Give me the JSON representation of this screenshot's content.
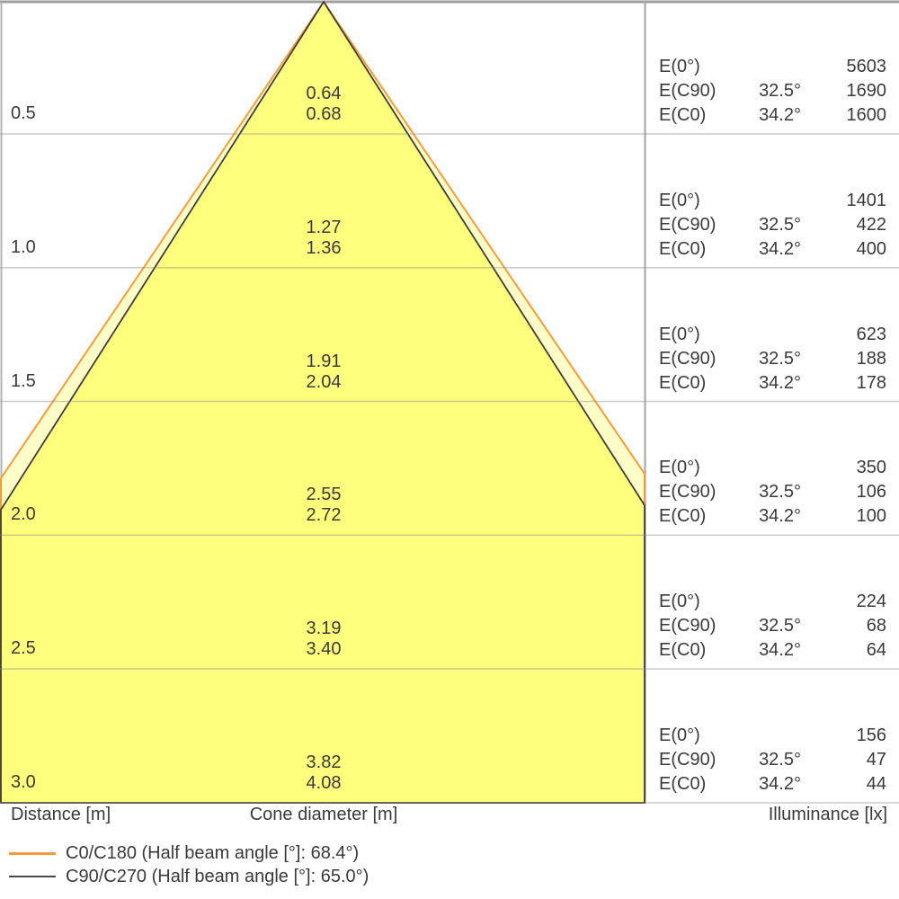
{
  "axis": {
    "distance": "Distance [m]",
    "cone_diameter": "Cone diameter [m]",
    "illuminance": "Illuminance [lx]"
  },
  "legend": {
    "items": [
      {
        "name": "C0/C180",
        "label": "C0/C180 (Half beam angle [°]: 68.4°)",
        "color": "#F59B3C"
      },
      {
        "name": "C90/C270",
        "label": "C90/C270 (Half beam angle [°]: 65.0°)",
        "color": "#4A4A4A"
      }
    ]
  },
  "colors": {
    "cone_fill_main": "#FFFF7D",
    "cone_fill_between": "#FFFFC8",
    "c0_line": "#F59B3C",
    "c90_line": "#3C3C3C",
    "gridline": "#8C8C8C",
    "divider": "#ABABAB",
    "text": "#3A3A3A"
  },
  "rows": [
    {
      "distance": "0.5",
      "d_c90": "0.64",
      "d_c0": "0.68",
      "e0_label": "E(0°)",
      "e0": "5603",
      "ec90_label": "E(C90)",
      "ec90_angle": "32.5°",
      "ec90": "1690",
      "ec0_label": "E(C0)",
      "ec0_angle": "34.2°",
      "ec0": "1600"
    },
    {
      "distance": "1.0",
      "d_c90": "1.27",
      "d_c0": "1.36",
      "e0_label": "E(0°)",
      "e0": "1401",
      "ec90_label": "E(C90)",
      "ec90_angle": "32.5°",
      "ec90": "422",
      "ec0_label": "E(C0)",
      "ec0_angle": "34.2°",
      "ec0": "400"
    },
    {
      "distance": "1.5",
      "d_c90": "1.91",
      "d_c0": "2.04",
      "e0_label": "E(0°)",
      "e0": "623",
      "ec90_label": "E(C90)",
      "ec90_angle": "32.5°",
      "ec90": "188",
      "ec0_label": "E(C0)",
      "ec0_angle": "34.2°",
      "ec0": "178"
    },
    {
      "distance": "2.0",
      "d_c90": "2.55",
      "d_c0": "2.72",
      "e0_label": "E(0°)",
      "e0": "350",
      "ec90_label": "E(C90)",
      "ec90_angle": "32.5°",
      "ec90": "106",
      "ec0_label": "E(C0)",
      "ec0_angle": "34.2°",
      "ec0": "100"
    },
    {
      "distance": "2.5",
      "d_c90": "3.19",
      "d_c0": "3.40",
      "e0_label": "E(0°)",
      "e0": "224",
      "ec90_label": "E(C90)",
      "ec90_angle": "32.5°",
      "ec90": "68",
      "ec0_label": "E(C0)",
      "ec0_angle": "34.2°",
      "ec0": "64"
    },
    {
      "distance": "3.0",
      "d_c90": "3.82",
      "d_c0": "4.08",
      "e0_label": "E(0°)",
      "e0": "156",
      "ec90_label": "E(C90)",
      "ec90_angle": "32.5°",
      "ec90": "47",
      "ec0_label": "E(C0)",
      "ec0_angle": "34.2°",
      "ec0": "44"
    }
  ],
  "chart_data": {
    "type": "table",
    "title": "Light cone diagram (beam spread and illuminance vs distance)",
    "distance_m": [
      0.5,
      1.0,
      1.5,
      2.0,
      2.5,
      3.0
    ],
    "series": [
      {
        "name": "C0/C180",
        "half_beam_angle_deg": 68.4,
        "cone_diameter_m": [
          0.68,
          1.36,
          2.04,
          2.72,
          3.4,
          4.08
        ],
        "color": "#F59B3C"
      },
      {
        "name": "C90/C270",
        "half_beam_angle_deg": 65.0,
        "cone_diameter_m": [
          0.64,
          1.27,
          1.91,
          2.55,
          3.19,
          3.82
        ],
        "color": "#4A4A4A"
      }
    ],
    "illuminance_lx": [
      {
        "name": "E(0°)",
        "angle": null,
        "values": [
          5603,
          1401,
          623,
          350,
          224,
          156
        ]
      },
      {
        "name": "E(C90)",
        "angle": "32.5°",
        "values": [
          1690,
          422,
          188,
          106,
          68,
          47
        ]
      },
      {
        "name": "E(C0)",
        "angle": "34.2°",
        "values": [
          1600,
          400,
          178,
          100,
          64,
          44
        ]
      }
    ],
    "xlabel": "Cone diameter [m]",
    "ylabel_left": "Distance [m]",
    "ylabel_right": "Illuminance [lx]",
    "grid": true,
    "legend_position": "bottom-left"
  }
}
